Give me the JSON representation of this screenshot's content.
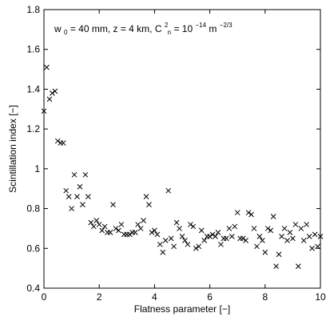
{
  "chart_data": {
    "type": "scatter",
    "title": "",
    "xlabel": "Flatness parameter [−]",
    "ylabel": "Scintillation index [−]",
    "xlim": [
      0,
      10
    ],
    "ylim": [
      0.4,
      1.8
    ],
    "grid": false,
    "legend": "none",
    "marker": "x",
    "color": "#000000",
    "x_ticks": [
      "0",
      "2",
      "4",
      "6",
      "8",
      "10"
    ],
    "y_ticks": [
      "0.4",
      "0.6",
      "0.8",
      "1",
      "1.2",
      "1.4",
      "1.6",
      "1.8"
    ],
    "annotation": {
      "w": "w",
      "w_sub": "0",
      "mid": " = 40 mm, z = 4 km, C",
      "c_sup": "2",
      "c_sub": "n",
      "eq": " = 10",
      "exp": "−14",
      "m": " m",
      "m_sup": "−2/3"
    },
    "points": [
      [
        0.0,
        1.29
      ],
      [
        0.1,
        1.51
      ],
      [
        0.2,
        1.35
      ],
      [
        0.3,
        1.38
      ],
      [
        0.4,
        1.39
      ],
      [
        0.5,
        1.14
      ],
      [
        0.6,
        1.13
      ],
      [
        0.7,
        1.13
      ],
      [
        0.8,
        0.89
      ],
      [
        0.9,
        0.86
      ],
      [
        1.0,
        0.8
      ],
      [
        1.1,
        0.97
      ],
      [
        1.2,
        0.86
      ],
      [
        1.3,
        0.91
      ],
      [
        1.4,
        0.82
      ],
      [
        1.5,
        0.97
      ],
      [
        1.6,
        0.86
      ],
      [
        1.7,
        0.73
      ],
      [
        1.8,
        0.71
      ],
      [
        1.9,
        0.74
      ],
      [
        2.0,
        0.72
      ],
      [
        2.1,
        0.69
      ],
      [
        2.2,
        0.71
      ],
      [
        2.3,
        0.68
      ],
      [
        2.4,
        0.68
      ],
      [
        2.5,
        0.82
      ],
      [
        2.6,
        0.7
      ],
      [
        2.7,
        0.69
      ],
      [
        2.8,
        0.72
      ],
      [
        2.9,
        0.67
      ],
      [
        3.0,
        0.67
      ],
      [
        3.1,
        0.67
      ],
      [
        3.2,
        0.68
      ],
      [
        3.3,
        0.68
      ],
      [
        3.4,
        0.72
      ],
      [
        3.5,
        0.7
      ],
      [
        3.6,
        0.74
      ],
      [
        3.7,
        0.86
      ],
      [
        3.8,
        0.82
      ],
      [
        3.9,
        0.68
      ],
      [
        4.0,
        0.69
      ],
      [
        4.1,
        0.67
      ],
      [
        4.2,
        0.62
      ],
      [
        4.3,
        0.58
      ],
      [
        4.4,
        0.64
      ],
      [
        4.5,
        0.89
      ],
      [
        4.6,
        0.65
      ],
      [
        4.7,
        0.61
      ],
      [
        4.8,
        0.73
      ],
      [
        4.9,
        0.7
      ],
      [
        5.0,
        0.66
      ],
      [
        5.1,
        0.64
      ],
      [
        5.2,
        0.62
      ],
      [
        5.3,
        0.72
      ],
      [
        5.4,
        0.71
      ],
      [
        5.5,
        0.6
      ],
      [
        5.6,
        0.61
      ],
      [
        5.7,
        0.69
      ],
      [
        5.8,
        0.64
      ],
      [
        5.9,
        0.66
      ],
      [
        6.0,
        0.66
      ],
      [
        6.1,
        0.67
      ],
      [
        6.2,
        0.66
      ],
      [
        6.3,
        0.68
      ],
      [
        6.4,
        0.62
      ],
      [
        6.5,
        0.65
      ],
      [
        6.6,
        0.65
      ],
      [
        6.7,
        0.7
      ],
      [
        6.8,
        0.66
      ],
      [
        6.9,
        0.71
      ],
      [
        7.0,
        0.78
      ],
      [
        7.1,
        0.65
      ],
      [
        7.2,
        0.65
      ],
      [
        7.3,
        0.64
      ],
      [
        7.4,
        0.78
      ],
      [
        7.5,
        0.77
      ],
      [
        7.6,
        0.7
      ],
      [
        7.7,
        0.61
      ],
      [
        7.8,
        0.66
      ],
      [
        7.9,
        0.64
      ],
      [
        8.0,
        0.58
      ],
      [
        8.1,
        0.7
      ],
      [
        8.2,
        0.69
      ],
      [
        8.3,
        0.76
      ],
      [
        8.4,
        0.51
      ],
      [
        8.5,
        0.57
      ],
      [
        8.6,
        0.66
      ],
      [
        8.7,
        0.7
      ],
      [
        8.8,
        0.64
      ],
      [
        8.9,
        0.68
      ],
      [
        9.0,
        0.65
      ],
      [
        9.1,
        0.72
      ],
      [
        9.2,
        0.51
      ],
      [
        9.3,
        0.7
      ],
      [
        9.4,
        0.64
      ],
      [
        9.5,
        0.72
      ],
      [
        9.6,
        0.66
      ],
      [
        9.7,
        0.6
      ],
      [
        9.8,
        0.67
      ],
      [
        9.9,
        0.61
      ],
      [
        10.0,
        0.66
      ]
    ]
  }
}
